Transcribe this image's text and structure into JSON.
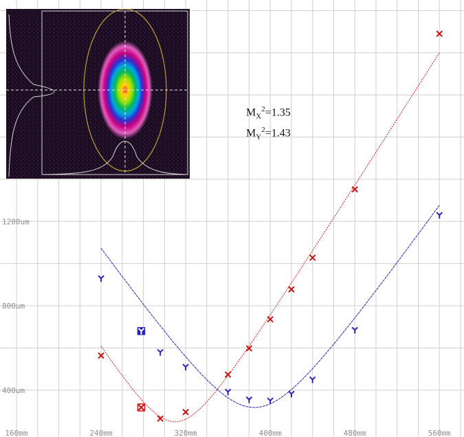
{
  "colors": {
    "x_series": "#c41616",
    "y_series": "#2424b0",
    "grid": "#cfcfcf",
    "tick_text": "#8c8c8c",
    "inset_bg": "#1c0c22",
    "inset_ellipse": "#b8a032"
  },
  "annotation": {
    "mx_sym": "M",
    "mx_sub": "X",
    "mx_sup": "2",
    "mx_val": "=1.35",
    "my_sym": "M",
    "my_sub": "Y",
    "my_sup": "2",
    "my_val": "=1.43"
  },
  "chart_data": {
    "type": "scatter",
    "title": "",
    "xlabel": "",
    "ylabel": "",
    "x_unit": "mm",
    "y_unit": "um",
    "xlim": [
      160,
      580
    ],
    "ylim": [
      230,
      2250
    ],
    "x_ticks": [
      {
        "value": 160,
        "label": "160mm"
      },
      {
        "value": 240,
        "label": "240mm"
      },
      {
        "value": 320,
        "label": "320mm"
      },
      {
        "value": 400,
        "label": "400mm"
      },
      {
        "value": 480,
        "label": "480mm"
      },
      {
        "value": 560,
        "label": "560mm"
      }
    ],
    "y_ticks": [
      {
        "value": 400,
        "label": "400um"
      },
      {
        "value": 800,
        "label": "800um"
      },
      {
        "value": 1200,
        "label": "1200um"
      }
    ],
    "x_gridlines": [
      160,
      180,
      200,
      220,
      240,
      260,
      280,
      300,
      320,
      340,
      360,
      380,
      400,
      420,
      440,
      460,
      480,
      500,
      520,
      540,
      560,
      580
    ],
    "y_gridlines": [
      400,
      600,
      800,
      1000,
      1200,
      1400,
      1600,
      1800,
      2000,
      2200
    ],
    "grid": true,
    "series": [
      {
        "name": "X",
        "marker": "x",
        "points": [
          [
            240,
            564
          ],
          [
            278,
            318
          ],
          [
            296,
            265
          ],
          [
            320,
            296
          ],
          [
            360,
            474
          ],
          [
            380,
            598
          ],
          [
            400,
            736
          ],
          [
            420,
            878
          ],
          [
            440,
            1028
          ],
          [
            480,
            1352
          ],
          [
            560,
            2090
          ]
        ],
        "highlighted_point": [
          278,
          318
        ],
        "fit": {
          "w0": 250,
          "z0": 310,
          "zr": 31.5,
          "x_range": [
            240,
            560
          ]
        }
      },
      {
        "name": "Y",
        "marker": "Y",
        "points": [
          [
            240,
            930
          ],
          [
            278,
            680
          ],
          [
            296,
            580
          ],
          [
            320,
            510
          ],
          [
            360,
            392
          ],
          [
            380,
            355
          ],
          [
            400,
            350
          ],
          [
            420,
            382
          ],
          [
            440,
            450
          ],
          [
            480,
            685
          ],
          [
            560,
            1230
          ]
        ],
        "highlighted_point": [
          278,
          680
        ],
        "fit": {
          "w0": 318,
          "z0": 385,
          "zr": 45.0,
          "x_range": [
            240,
            560
          ]
        }
      }
    ]
  },
  "inset": {
    "description_shape": "beam-profile"
  }
}
